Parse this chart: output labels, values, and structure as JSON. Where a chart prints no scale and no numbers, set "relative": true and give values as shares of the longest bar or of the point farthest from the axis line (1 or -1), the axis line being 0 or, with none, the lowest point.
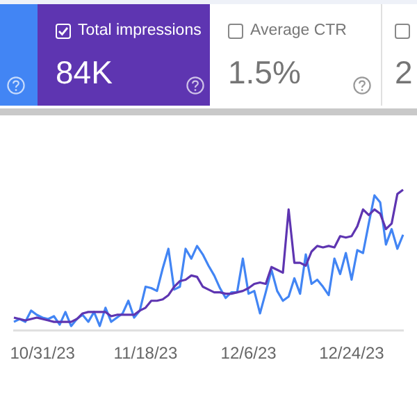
{
  "chart_data": {
    "type": "line",
    "relative": true,
    "tick_labels": "x",
    "marker": "none",
    "annotations": [
      "84K",
      "Average CTR",
      "1.5%",
      "2"
    ],
    "categories": [
      null,
      null,
      null,
      null,
      null,
      "10/31/23",
      null,
      null,
      null,
      null,
      null,
      null,
      null,
      null,
      null,
      null,
      null,
      null,
      null,
      null,
      null,
      null,
      null,
      "11/18/23",
      null,
      null,
      null,
      null,
      null,
      null,
      null,
      null,
      null,
      null,
      null,
      null,
      null,
      null,
      null,
      null,
      null,
      "12/6/23",
      null,
      null,
      null,
      null,
      null,
      null,
      null,
      null,
      null,
      null,
      null,
      null,
      null,
      null,
      null,
      null,
      null,
      "12/24/23",
      null,
      null,
      null,
      null,
      null,
      null,
      null,
      null,
      null
    ],
    "series": [
      {
        "color": "#4285f4",
        "values": [
          0.06,
          0.08,
          0.06,
          0.14,
          0.11,
          0.09,
          0.08,
          0.1,
          0.04,
          0.13,
          0.03,
          0.08,
          0.11,
          0.06,
          0.13,
          0.03,
          0.16,
          0.06,
          0.09,
          0.12,
          0.21,
          0.09,
          0.14,
          0.31,
          0.3,
          0.28,
          0.44,
          0.58,
          0.29,
          0.31,
          0.58,
          0.51,
          0.6,
          0.54,
          0.46,
          0.39,
          0.3,
          0.23,
          0.27,
          0.27,
          0.51,
          0.26,
          0.28,
          0.12,
          0.27,
          0.43,
          0.28,
          0.21,
          0.24,
          0.37,
          0.26,
          0.54,
          0.33,
          0.36,
          0.31,
          0.25,
          0.51,
          0.4,
          0.55,
          0.36,
          0.57,
          0.55,
          0.76,
          0.96,
          0.91,
          0.61,
          0.72,
          0.58,
          0.68
        ]
      },
      {
        "name": "Total impressions",
        "color": "#5e35b1",
        "values": [
          0.09,
          0.08,
          0.07,
          0.08,
          0.09,
          0.08,
          0.07,
          0.06,
          0.06,
          0.06,
          0.06,
          0.08,
          0.12,
          0.13,
          0.13,
          0.13,
          0.13,
          0.1,
          0.11,
          0.11,
          0.11,
          0.11,
          0.14,
          0.16,
          0.21,
          0.21,
          0.22,
          0.25,
          0.31,
          0.35,
          0.36,
          0.39,
          0.38,
          0.31,
          0.29,
          0.27,
          0.27,
          0.26,
          0.26,
          0.27,
          0.28,
          0.3,
          0.33,
          0.34,
          0.33,
          0.45,
          0.43,
          0.41,
          0.86,
          0.48,
          0.48,
          0.46,
          0.56,
          0.6,
          0.59,
          0.6,
          0.59,
          0.67,
          0.66,
          0.67,
          0.74,
          0.86,
          0.82,
          0.86,
          0.83,
          0.72,
          0.76,
          0.97,
          1
        ]
      }
    ]
  }
}
